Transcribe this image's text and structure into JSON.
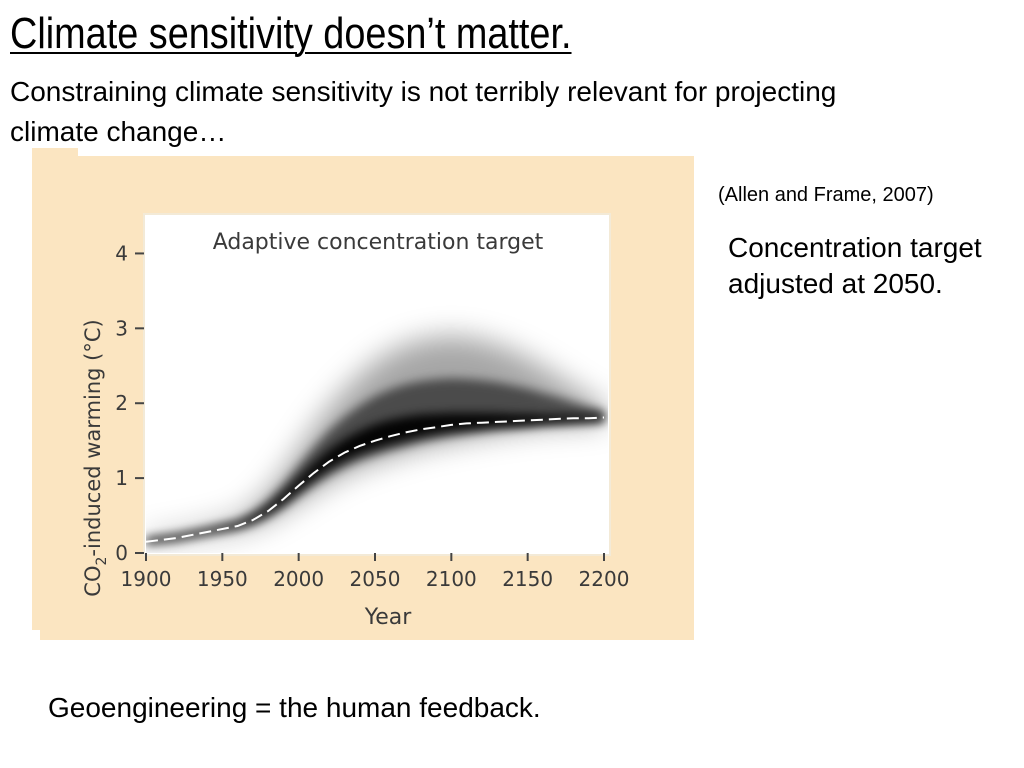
{
  "slide": {
    "title": "Climate sensitivity doesn’t matter.",
    "subtitle": "Constraining climate sensitivity is not terribly relevant for projecting climate change…",
    "citation": "(Allen and Frame, 2007)",
    "side_note": "Concentration target adjusted at 2050.",
    "bottom_note": "Geoengineering = the human feedback."
  },
  "colors": {
    "figure_background": "#fbe5c1",
    "plot_background": "#ffffff",
    "band": "#000000",
    "median_line": "#ffffff"
  },
  "chart_data": {
    "type": "area",
    "title": "Adaptive concentration target",
    "xlabel": "Year",
    "ylabel_main": "CO",
    "ylabel_sub": "2",
    "ylabel_rest": "-induced warming (°C)",
    "xlim": [
      1900,
      2200
    ],
    "ylim": [
      0,
      4.5
    ],
    "x_ticks": [
      1900,
      1950,
      2000,
      2050,
      2100,
      2150,
      2200
    ],
    "y_ticks": [
      0,
      1,
      2,
      3,
      4
    ],
    "x": [
      1900,
      1920,
      1940,
      1960,
      1970,
      1980,
      1990,
      2000,
      2010,
      2020,
      2030,
      2040,
      2050,
      2060,
      2070,
      2080,
      2090,
      2100,
      2110,
      2120,
      2130,
      2140,
      2150,
      2160,
      2170,
      2180,
      2190,
      2200
    ],
    "median": [
      0.15,
      0.2,
      0.28,
      0.36,
      0.44,
      0.56,
      0.72,
      0.9,
      1.07,
      1.22,
      1.34,
      1.43,
      1.5,
      1.56,
      1.61,
      1.65,
      1.68,
      1.71,
      1.73,
      1.74,
      1.75,
      1.76,
      1.77,
      1.78,
      1.79,
      1.8,
      1.8,
      1.81
    ],
    "band_outer_low": [
      0.1,
      0.15,
      0.22,
      0.29,
      0.35,
      0.43,
      0.55,
      0.68,
      0.81,
      0.93,
      1.04,
      1.13,
      1.2,
      1.27,
      1.33,
      1.39,
      1.44,
      1.48,
      1.52,
      1.56,
      1.59,
      1.62,
      1.65,
      1.67,
      1.69,
      1.7,
      1.71,
      1.72
    ],
    "band_outer_high": [
      0.22,
      0.28,
      0.37,
      0.48,
      0.62,
      0.82,
      1.08,
      1.38,
      1.68,
      1.95,
      2.18,
      2.38,
      2.55,
      2.68,
      2.78,
      2.84,
      2.88,
      2.9,
      2.88,
      2.84,
      2.78,
      2.7,
      2.6,
      2.48,
      2.36,
      2.22,
      2.1,
      1.98
    ],
    "band_core_low": [
      0.13,
      0.18,
      0.26,
      0.34,
      0.41,
      0.52,
      0.66,
      0.83,
      0.99,
      1.13,
      1.24,
      1.33,
      1.4,
      1.46,
      1.51,
      1.56,
      1.6,
      1.63,
      1.65,
      1.67,
      1.69,
      1.7,
      1.71,
      1.73,
      1.74,
      1.75,
      1.76,
      1.77
    ],
    "band_core_high": [
      0.18,
      0.23,
      0.31,
      0.4,
      0.49,
      0.62,
      0.8,
      1.0,
      1.2,
      1.38,
      1.52,
      1.63,
      1.72,
      1.78,
      1.82,
      1.85,
      1.86,
      1.87,
      1.87,
      1.87,
      1.87,
      1.86,
      1.86,
      1.85,
      1.85,
      1.85,
      1.85,
      1.85
    ],
    "grid": false,
    "legend": "none"
  }
}
